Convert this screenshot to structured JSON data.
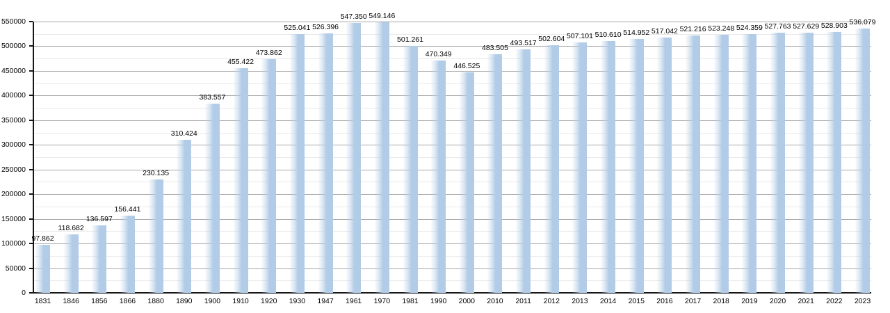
{
  "chart_data": {
    "type": "bar",
    "title": "",
    "xlabel": "",
    "ylabel": "",
    "categories": [
      "1831",
      "1846",
      "1856",
      "1866",
      "1880",
      "1890",
      "1900",
      "1910",
      "1920",
      "1930",
      "1947",
      "1961",
      "1970",
      "1981",
      "1990",
      "2000",
      "2010",
      "2011",
      "2012",
      "2013",
      "2014",
      "2015",
      "2016",
      "2017",
      "2018",
      "2019",
      "2020",
      "2021",
      "2022",
      "2023"
    ],
    "values": [
      97862,
      118682,
      136597,
      156441,
      230135,
      310424,
      383557,
      455422,
      473862,
      525041,
      526396,
      547350,
      549146,
      501261,
      470349,
      446525,
      483505,
      493517,
      502604,
      507101,
      510610,
      514952,
      517042,
      521216,
      523248,
      524359,
      527763,
      527629,
      528903,
      536079
    ],
    "value_labels": [
      "97.862",
      "118.682",
      "136.597",
      "156.441",
      "230.135",
      "310.424",
      "383.557",
      "455.422",
      "473.862",
      "525.041",
      "526.396",
      "547.350",
      "549.146",
      "501.261",
      "470.349",
      "446.525",
      "483.505",
      "493.517",
      "502.604",
      "507.101",
      "510.610",
      "514.952",
      "517.042",
      "521.216",
      "523.248",
      "524.359",
      "527.763",
      "527.629",
      "528.903",
      "536.079"
    ],
    "ylim": [
      0,
      550000
    ],
    "y_major_step": 50000,
    "y_minor_step": 25000,
    "y_tick_labels": [
      "0",
      "50000",
      "100000",
      "150000",
      "200000",
      "250000",
      "300000",
      "350000",
      "400000",
      "450000",
      "500000",
      "550000"
    ],
    "grid": true,
    "legend": "none",
    "colors": {
      "bar_fill": "#b2cce7",
      "grid_major": "#a6a6a6",
      "grid_minor": "#e9e9e9",
      "axis": "#161616",
      "text": "#000000",
      "background": "#ffffff"
    }
  }
}
